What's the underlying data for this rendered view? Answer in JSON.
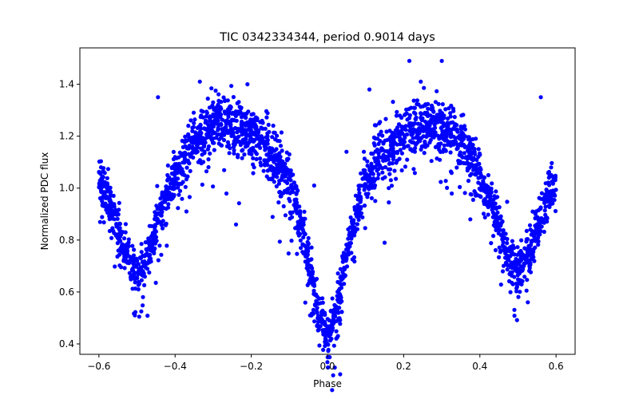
{
  "chart_data": {
    "type": "scatter",
    "title": "TIC 0342334344, period 0.9014 days",
    "xlabel": "Phase",
    "ylabel": "Normalized PDC flux",
    "xlim": [
      -0.65,
      0.65
    ],
    "ylim": [
      0.36,
      1.54
    ],
    "xticks": [
      -0.6,
      -0.4,
      -0.2,
      0.0,
      0.2,
      0.4,
      0.6
    ],
    "xtick_labels": [
      "−0.6",
      "−0.4",
      "−0.2",
      "0.0",
      "0.2",
      "0.4",
      "0.6"
    ],
    "yticks": [
      0.4,
      0.6,
      0.8,
      1.0,
      1.2,
      1.4
    ],
    "ytick_labels": [
      "0.4",
      "0.6",
      "0.8",
      "1.0",
      "1.2",
      "1.4"
    ],
    "grid": false,
    "marker_color": "#0000ff",
    "x_range": [
      -0.6,
      0.6
    ],
    "curve_model": {
      "description": "phase-folded light curve, symmetric about phase 0",
      "knots_abs_phase": [
        0.0,
        0.03,
        0.06,
        0.1,
        0.15,
        0.2,
        0.25,
        0.28,
        0.32,
        0.36,
        0.4,
        0.44,
        0.47,
        0.5,
        0.53,
        0.56,
        0.58,
        0.6
      ],
      "knots_flux": [
        0.42,
        0.56,
        0.8,
        1.03,
        1.14,
        1.21,
        1.24,
        1.25,
        1.22,
        1.16,
        1.05,
        0.9,
        0.76,
        0.66,
        0.75,
        0.88,
        0.97,
        1.03
      ],
      "scatter_sigma": 0.045
    },
    "outliers": [
      {
        "x": 0.215,
        "y": 1.49
      },
      {
        "x": 0.3,
        "y": 1.49
      },
      {
        "x": 0.245,
        "y": 1.41
      },
      {
        "x": -0.335,
        "y": 1.41
      },
      {
        "x": -0.21,
        "y": 1.4
      },
      {
        "x": 0.11,
        "y": 1.38
      },
      {
        "x": -0.445,
        "y": 1.35
      },
      {
        "x": 0.56,
        "y": 1.35
      },
      {
        "x": 0.15,
        "y": 0.79
      },
      {
        "x": -0.035,
        "y": 1.01
      },
      {
        "x": -0.4,
        "y": 1.12
      },
      {
        "x": 0.05,
        "y": 1.14
      },
      {
        "x": -0.24,
        "y": 0.86
      },
      {
        "x": 0.375,
        "y": 0.88
      },
      {
        "x": -0.115,
        "y": 0.93
      }
    ]
  }
}
